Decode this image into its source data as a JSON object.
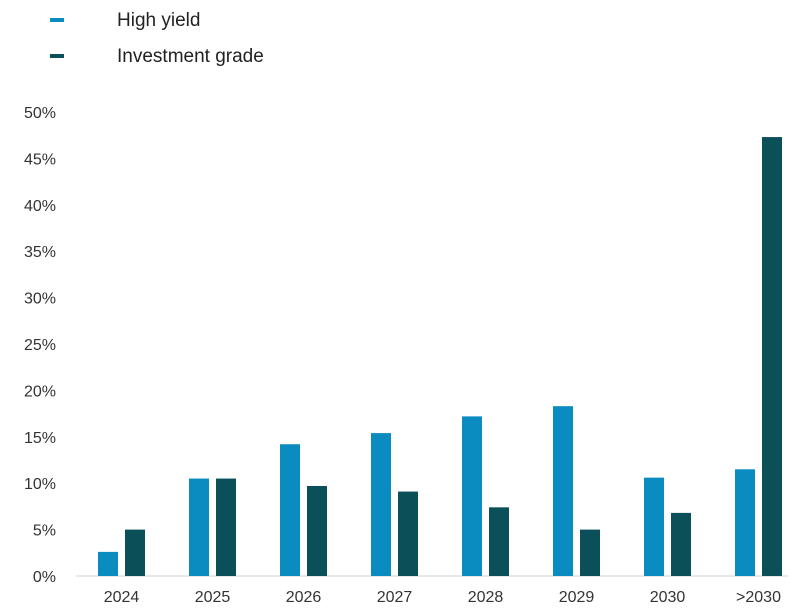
{
  "chart_data": {
    "type": "bar",
    "categories": [
      "2024",
      "2025",
      "2026",
      "2027",
      "2028",
      "2029",
      "2030",
      ">2030"
    ],
    "series": [
      {
        "name": "High yield",
        "values": [
          2.6,
          10.5,
          14.2,
          15.4,
          17.2,
          18.3,
          10.6,
          11.5
        ],
        "color": "#0b8cc0"
      },
      {
        "name": "Investment grade",
        "values": [
          5.0,
          10.5,
          9.7,
          9.1,
          7.4,
          5.0,
          6.8,
          47.3
        ],
        "color": "#0b5058"
      }
    ],
    "yticks": [
      "0%",
      "5%",
      "10%",
      "15%",
      "20%",
      "25%",
      "30%",
      "35%",
      "40%",
      "45%",
      "50%"
    ],
    "ylim": [
      0,
      50
    ],
    "grid": false,
    "legend_position": "top-left",
    "title": "",
    "xlabel": "",
    "ylabel": ""
  }
}
